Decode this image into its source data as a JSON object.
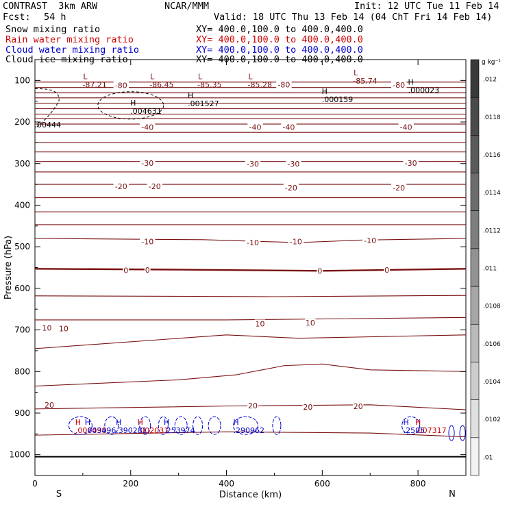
{
  "header": {
    "model": "CONTRAST  3km ARW",
    "center": "NCAR/MMM",
    "init": "Init: 12 UTC Tue 11 Feb 14",
    "fcst_label": "Fcst:",
    "fcst_value": "54 h",
    "valid": "Valid: 18 UTC Thu 13 Feb 14 (04 ChT Fri 14 Feb 14)"
  },
  "fields": [
    {
      "label": "Snow mixing ratio",
      "xy": "XY= 400.0,100.0 to 400.0,400.0",
      "color": "#000000"
    },
    {
      "label": "Rain water mixing ratio",
      "xy": "XY= 400.0,100.0 to 400.0,400.0",
      "color": "#cc0000"
    },
    {
      "label": "Cloud water mixing ratio",
      "xy": "XY= 400.0,100.0 to 400.0,400.0",
      "color": "#0000cc"
    },
    {
      "label": "Cloud ice mixing ratio",
      "xy": "XY= 400.0,100.0 to 400.0,400.0",
      "color": "#000000"
    }
  ],
  "colorbar": {
    "unit": "g kg⁻¹",
    "labels": [
      ".012",
      ".0118",
      ".0116",
      ".0114",
      ".0112",
      ".011",
      ".0108",
      ".0106",
      ".0104",
      ".0102",
      ".01"
    ],
    "shades": [
      "#3a3a3a",
      "#4a4a4a",
      "#5a5a5a",
      "#6c6c6c",
      "#7e7e7e",
      "#929292",
      "#a6a6a6",
      "#bababa",
      "#cdcdcd",
      "#e0e0e0",
      "#f2f2f2"
    ]
  },
  "chart_data": {
    "type": "contour cross-section",
    "xlabel": "Distance (km)",
    "ylabel": "Pressure (hPa)",
    "xlim": [
      0,
      900
    ],
    "ylim": [
      1050,
      50
    ],
    "x_ticks": [
      0,
      200,
      400,
      600,
      800
    ],
    "y_ticks": [
      100,
      200,
      300,
      400,
      500,
      600,
      700,
      800,
      900,
      1000
    ],
    "x_end_labels": {
      "left": "S",
      "right": "N"
    },
    "colors": {
      "temperature": "#7a1010",
      "snow": "#000000",
      "rain": "#cc0000",
      "cloud_water": "#0000cc"
    },
    "temperature_isotherms_hPa": [
      [
        0,
        104
      ],
      [
        0,
        117
      ],
      [
        0,
        130
      ],
      [
        0,
        142
      ],
      [
        0,
        155
      ],
      [
        0,
        168
      ],
      [
        0,
        181
      ],
      [
        0,
        192
      ],
      [
        0,
        205
      ],
      [
        0,
        225
      ],
      [
        0,
        250
      ],
      [
        0,
        272
      ],
      [
        0,
        295
      ],
      [
        0,
        320
      ],
      [
        0,
        350
      ],
      [
        0,
        382
      ],
      [
        0,
        416
      ],
      [
        0,
        447
      ],
      [
        0,
        480,
        350,
        483,
        550,
        490,
        680,
        484,
        900,
        480
      ],
      [
        0,
        553,
        300,
        555,
        600,
        558,
        900,
        553
      ],
      [
        0,
        618,
        500,
        620,
        900,
        617
      ],
      [
        0,
        676,
        400,
        676,
        900,
        670
      ],
      [
        0,
        745,
        400,
        712,
        550,
        720,
        900,
        712
      ],
      [
        0,
        835,
        300,
        820,
        420,
        808,
        520,
        786,
        600,
        782,
        700,
        796,
        900,
        800
      ],
      [
        0,
        890,
        400,
        883,
        700,
        880,
        900,
        892
      ],
      [
        0,
        953,
        400,
        945,
        700,
        948,
        900,
        957
      ]
    ],
    "temperature_labels": [
      {
        "text": "-80",
        "x": 180,
        "p": 112
      },
      {
        "text": "-80",
        "x": 520,
        "p": 110
      },
      {
        "text": "-80",
        "x": 760,
        "p": 111
      },
      {
        "text": "-40",
        "x": 235,
        "p": 212
      },
      {
        "text": "-40",
        "x": 460,
        "p": 212
      },
      {
        "text": "-40",
        "x": 530,
        "p": 212
      },
      {
        "text": "-40",
        "x": 775,
        "p": 212
      },
      {
        "text": "-30",
        "x": 235,
        "p": 299
      },
      {
        "text": "-30",
        "x": 455,
        "p": 300
      },
      {
        "text": "-30",
        "x": 540,
        "p": 300
      },
      {
        "text": "-30",
        "x": 785,
        "p": 299
      },
      {
        "text": "-20",
        "x": 180,
        "p": 355
      },
      {
        "text": "-20",
        "x": 250,
        "p": 355
      },
      {
        "text": "-20",
        "x": 535,
        "p": 358
      },
      {
        "text": "-20",
        "x": 760,
        "p": 358
      },
      {
        "text": "-10",
        "x": 235,
        "p": 487
      },
      {
        "text": "-10",
        "x": 455,
        "p": 490
      },
      {
        "text": "-10",
        "x": 545,
        "p": 487
      },
      {
        "text": "-10",
        "x": 700,
        "p": 485
      },
      {
        "text": "0",
        "x": 190,
        "p": 557
      },
      {
        "text": "0",
        "x": 235,
        "p": 556
      },
      {
        "text": "0",
        "x": 595,
        "p": 558
      },
      {
        "text": "0",
        "x": 735,
        "p": 556
      },
      {
        "text": "10",
        "x": 25,
        "p": 695
      },
      {
        "text": "10",
        "x": 60,
        "p": 697
      },
      {
        "text": "10",
        "x": 470,
        "p": 685
      },
      {
        "text": "10",
        "x": 575,
        "p": 683
      },
      {
        "text": "20",
        "x": 30,
        "p": 880
      },
      {
        "text": "20",
        "x": 455,
        "p": 882
      },
      {
        "text": "20",
        "x": 570,
        "p": 885
      },
      {
        "text": "20",
        "x": 675,
        "p": 884
      }
    ],
    "extrema": [
      {
        "mark": "L",
        "value": "-87.21",
        "x": 105,
        "p": 97,
        "kind": "temperature"
      },
      {
        "mark": "L",
        "value": "-86.45",
        "x": 245,
        "p": 97,
        "kind": "temperature"
      },
      {
        "mark": "L",
        "value": "-85.35",
        "x": 345,
        "p": 97,
        "kind": "temperature"
      },
      {
        "mark": "L",
        "value": "-85.28",
        "x": 450,
        "p": 97,
        "kind": "temperature"
      },
      {
        "mark": "L",
        "value": "-85.74",
        "x": 670,
        "p": 88,
        "kind": "temperature"
      },
      {
        "mark": "H",
        "value": ".000023",
        "x": 785,
        "p": 110,
        "kind": "snow"
      },
      {
        "mark": "H",
        "value": ".000159",
        "x": 605,
        "p": 132,
        "kind": "snow"
      },
      {
        "mark": "H",
        "value": ".001527",
        "x": 325,
        "p": 142,
        "kind": "snow"
      },
      {
        "mark": "H",
        "value": ".004631",
        "x": 205,
        "p": 160,
        "kind": "snow"
      },
      {
        "mark": "",
        "value": ".00444",
        "x": 5,
        "p": 193,
        "kind": "snow"
      },
      {
        "mark": "H",
        "value": ".006498",
        "x": 90,
        "p": 928,
        "kind": "rain"
      },
      {
        "mark": "H",
        "value": ".002031",
        "x": 220,
        "p": 928,
        "kind": "rain"
      },
      {
        "mark": "H",
        "value": ".007317",
        "x": 800,
        "p": 928,
        "kind": "rain"
      },
      {
        "mark": "H",
        "value": ".003496",
        "x": 110,
        "p": 928,
        "kind": "cloud_water"
      },
      {
        "mark": "H",
        "value": ".390281",
        "x": 175,
        "p": 928,
        "kind": "cloud_water"
      },
      {
        "mark": "H",
        "value": ".253974",
        "x": 275,
        "p": 928,
        "kind": "cloud_water"
      },
      {
        "mark": "H",
        "value": ".290962",
        "x": 420,
        "p": 928,
        "kind": "cloud_water"
      },
      {
        "mark": "H",
        "value": ".2505",
        "x": 775,
        "p": 928,
        "kind": "cloud_water"
      }
    ]
  }
}
